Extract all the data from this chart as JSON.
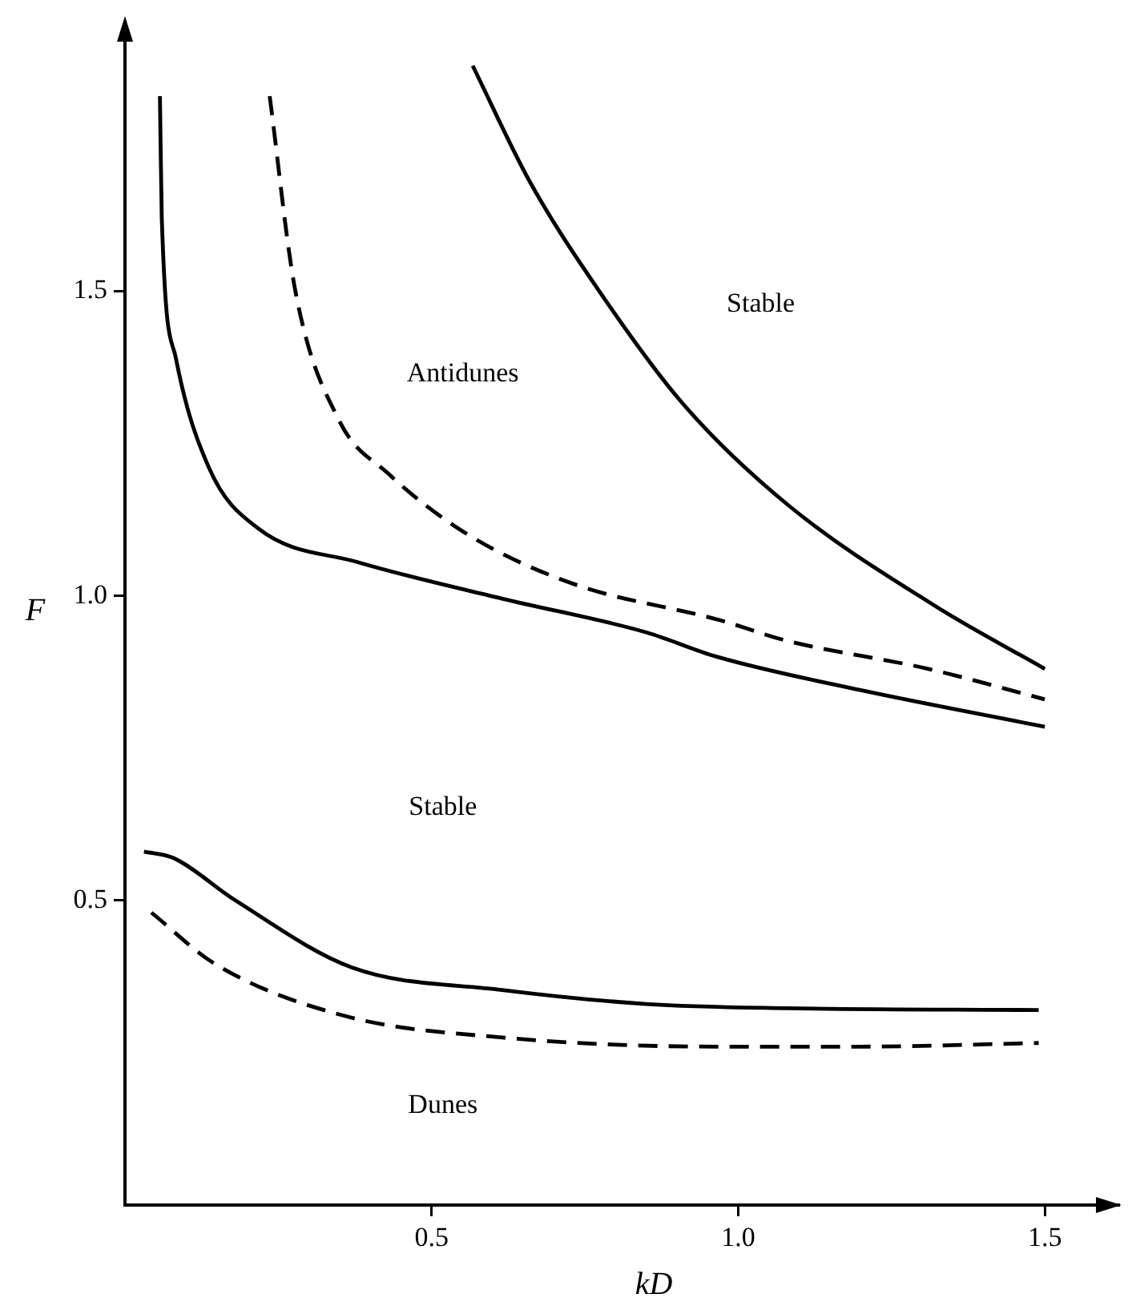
{
  "chart_data": {
    "type": "line",
    "xlabel": "kD",
    "ylabel": "F",
    "xlim": [
      0,
      1.62
    ],
    "ylim": [
      0,
      1.92
    ],
    "xticks": [
      0.5,
      {
        "value": 1.0,
        "label": "1.0"
      },
      1.5
    ],
    "yticks": [
      0.5,
      {
        "value": 1.0,
        "label": "1.0"
      },
      1.5
    ],
    "grid": false,
    "legend": false,
    "marker": "none",
    "series": [
      {
        "color": "#000000",
        "line_style": "solid",
        "x": [
          0.057,
          0.06,
          0.083,
          0.137,
          0.218,
          0.38,
          0.616,
          0.85,
          0.965,
          1.2,
          1.5
        ],
        "values": [
          1.82,
          1.62,
          1.39,
          1.21,
          1.11,
          1.055,
          0.995,
          0.94,
          0.9,
          0.845,
          0.785
        ]
      },
      {
        "color": "#000000",
        "line_style": "dashed",
        "x": [
          0.236,
          0.277,
          0.348,
          0.43,
          0.56,
          0.73,
          0.97,
          1.08,
          1.31,
          1.5
        ],
        "values": [
          1.82,
          1.505,
          1.29,
          1.2,
          1.1,
          1.02,
          0.96,
          0.926,
          0.88,
          0.83
        ]
      },
      {
        "color": "#000000",
        "line_style": "solid",
        "x": [
          0.567,
          0.66,
          0.77,
          0.91,
          1.08,
          1.32,
          1.5
        ],
        "values": [
          1.87,
          1.68,
          1.505,
          1.315,
          1.15,
          0.984,
          0.88
        ]
      },
      {
        "color": "#000000",
        "line_style": "solid",
        "x": [
          0.031,
          0.078,
          0.18,
          0.37,
          0.615,
          0.85,
          1.08,
          1.49
        ],
        "values": [
          0.58,
          0.57,
          0.5,
          0.39,
          0.353,
          0.33,
          0.323,
          0.32
        ]
      },
      {
        "color": "#000000",
        "line_style": "dashed",
        "x": [
          0.043,
          0.148,
          0.36,
          0.615,
          0.965,
          1.2,
          1.49
        ],
        "values": [
          0.48,
          0.395,
          0.31,
          0.275,
          0.26,
          0.26,
          0.266
        ]
      }
    ],
    "annotations": [
      "Stable",
      "Antidunes",
      "Stable",
      "Dunes"
    ]
  }
}
